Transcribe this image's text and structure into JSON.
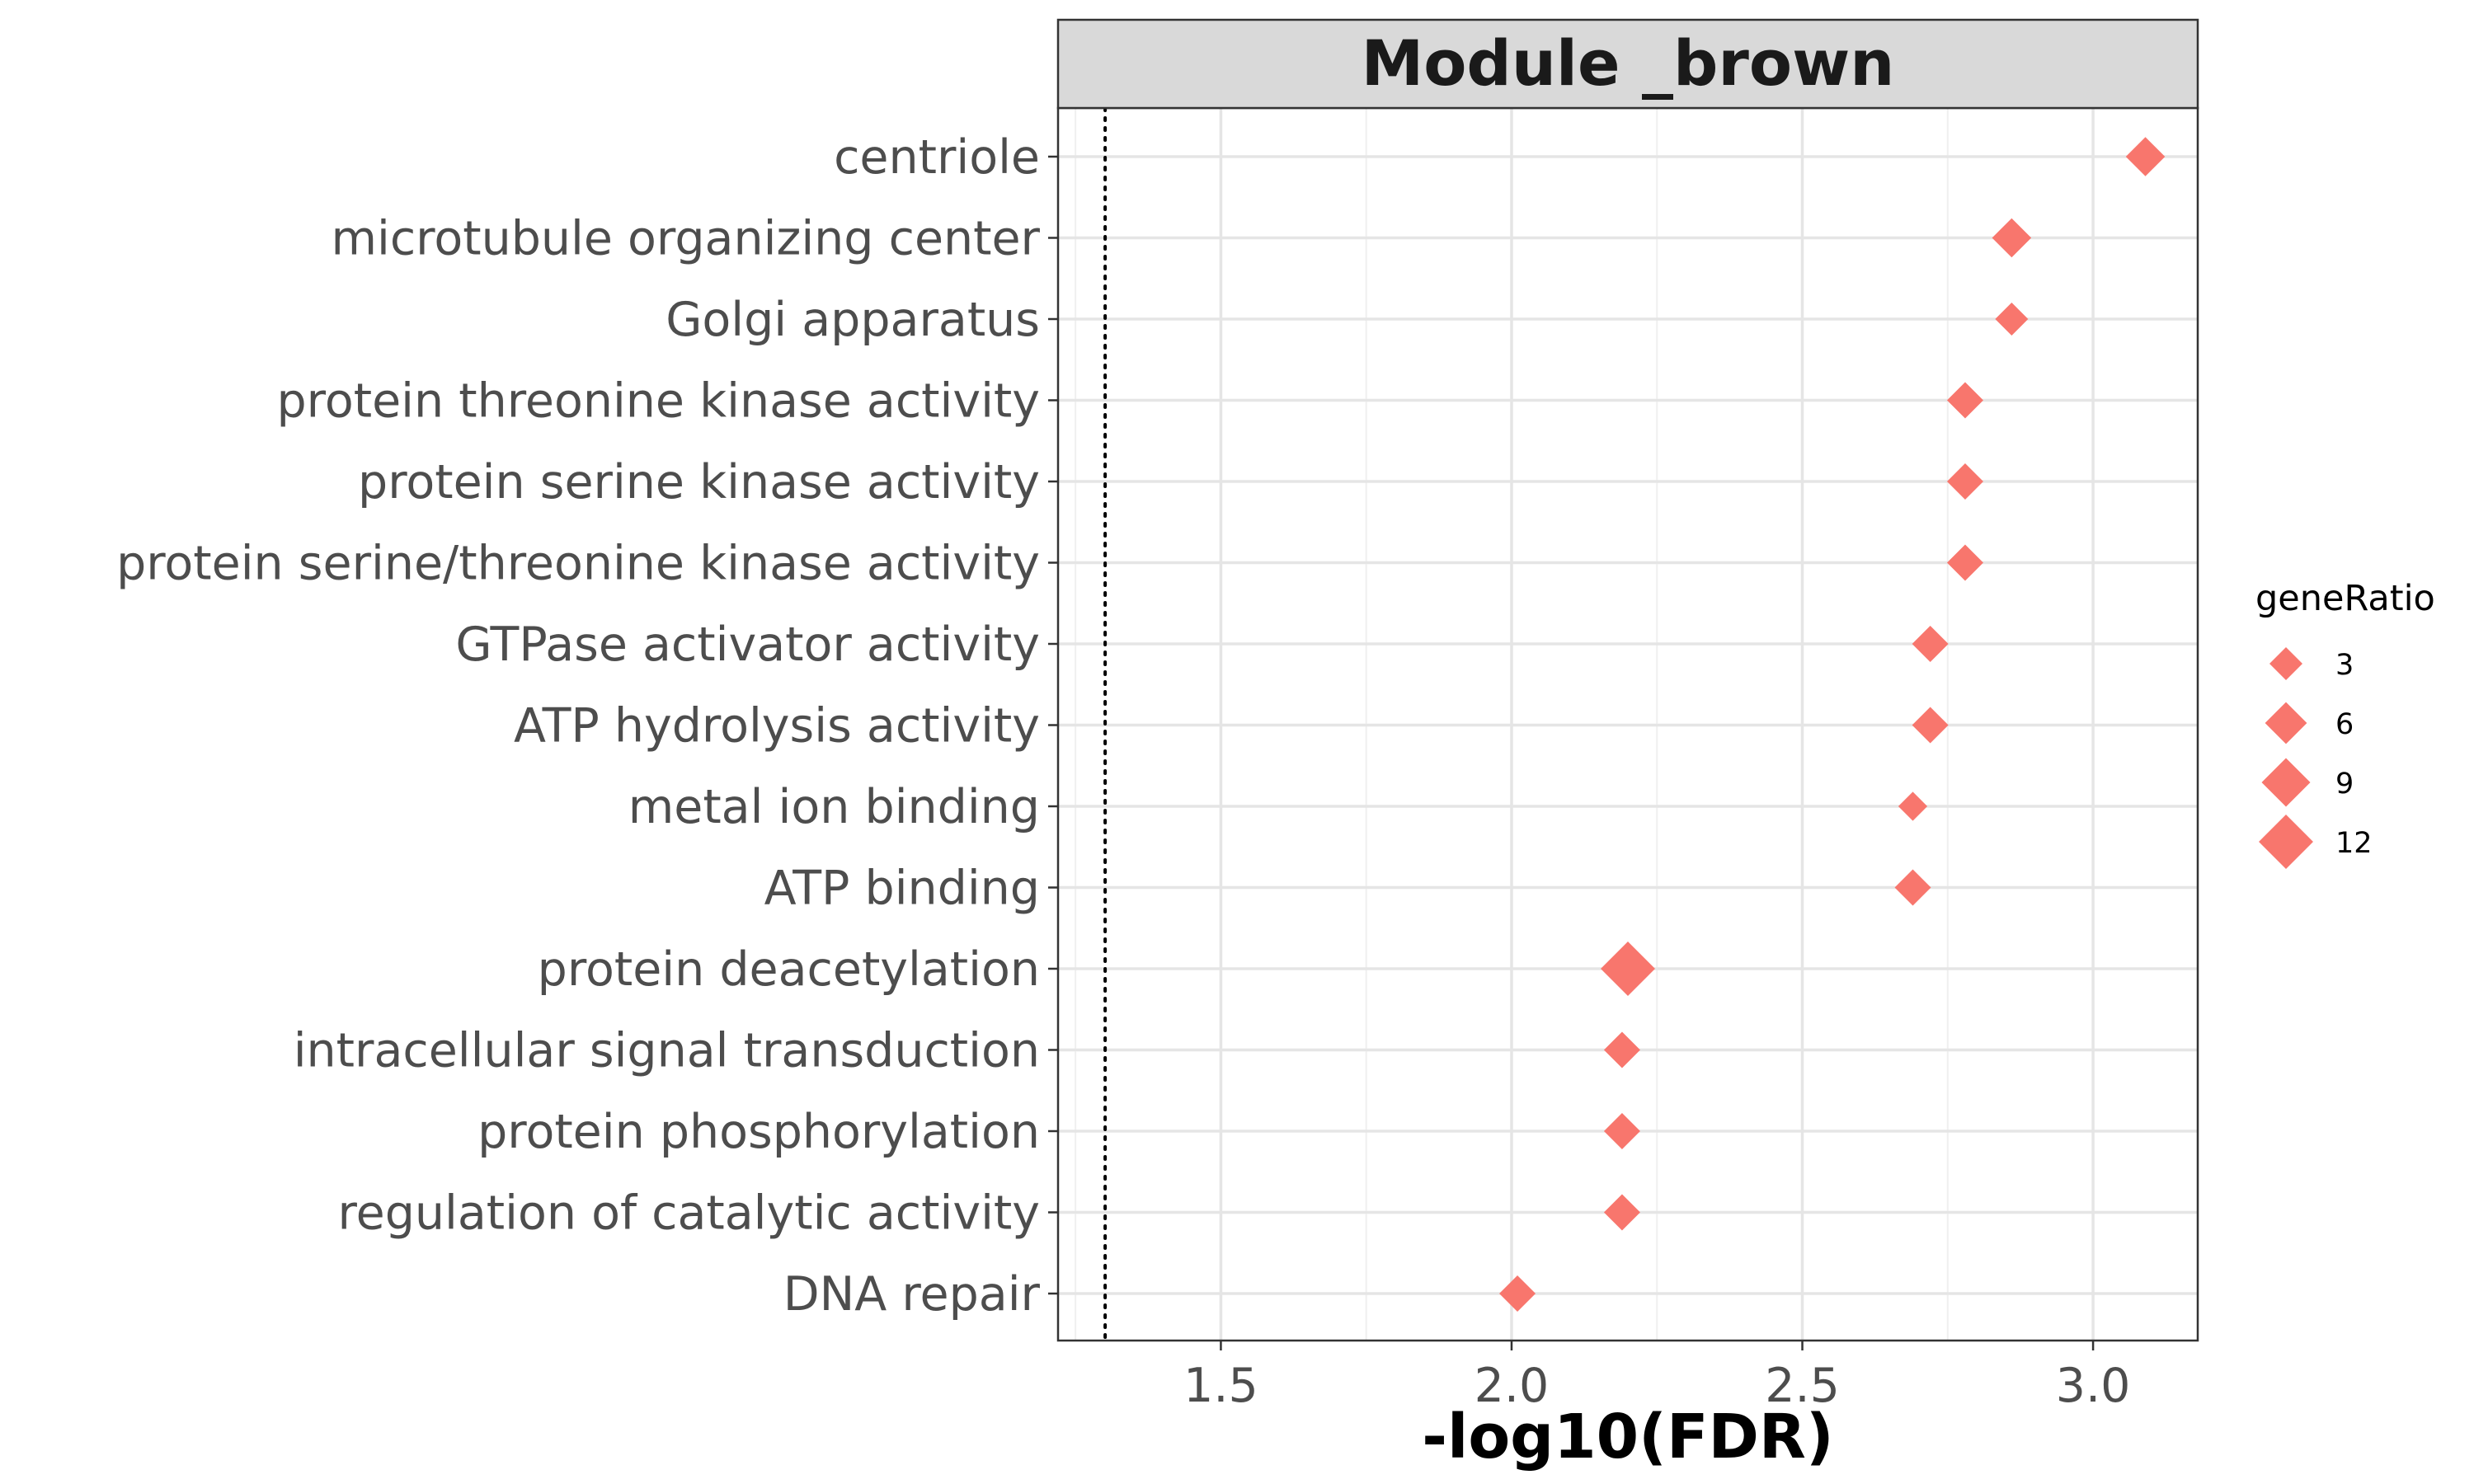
{
  "chart_data": {
    "type": "scatter",
    "title": "Module _brown",
    "xlabel": "-log10(FDR)",
    "ylabel": "",
    "xlim": [
      1.22,
      3.18
    ],
    "xticks": [
      1.5,
      2.0,
      2.5,
      3.0
    ],
    "xtick_labels": [
      "1.5",
      "2.0",
      "2.5",
      "3.0"
    ],
    "reference_line": {
      "x": 1.301,
      "style": "dotted"
    },
    "categories": [
      "centriole",
      "microtubule organizing center",
      "Golgi apparatus",
      "protein threonine kinase activity",
      "protein serine kinase activity",
      "protein serine/threonine kinase activity",
      "GTPase activator activity",
      "ATP hydrolysis activity",
      "metal ion binding",
      "ATP binding",
      "protein deacetylation",
      "intracellular signal transduction",
      "protein phosphorylation",
      "regulation of catalytic activity",
      "DNA repair"
    ],
    "series": [
      {
        "x": [
          3.09,
          2.86,
          2.86,
          2.78,
          2.78,
          2.78,
          2.72,
          2.72,
          2.69,
          2.69,
          2.2,
          2.19,
          2.19,
          2.19,
          2.01
        ],
        "size": [
          5,
          5,
          3,
          4,
          4,
          4,
          4,
          4,
          2,
          4,
          12,
          4,
          4,
          4,
          4
        ]
      }
    ],
    "marker": "diamond",
    "color": "#F8766D",
    "grid": true,
    "legend": {
      "title": "geneRatio",
      "placement": "right",
      "entries": [
        3,
        6,
        9,
        12
      ],
      "labels": [
        "3",
        "6",
        "9",
        "12"
      ]
    }
  }
}
